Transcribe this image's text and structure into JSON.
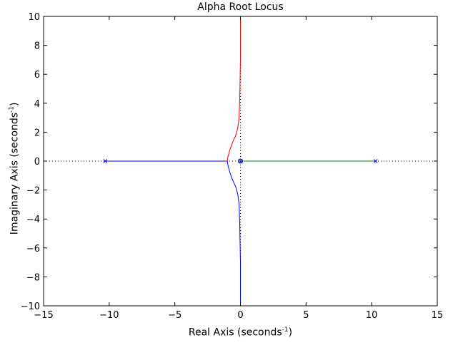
{
  "chart_data": {
    "type": "line",
    "title": "Alpha Root Locus",
    "xlabel": "Real Axis (seconds",
    "ylabel": "Imaginary Axis (seconds",
    "label_superscript": "-1",
    "label_suffix": ")",
    "xlim": [
      -15,
      15
    ],
    "ylim": [
      -10,
      10
    ],
    "xticks": [
      -15,
      -10,
      -5,
      0,
      5,
      10,
      15
    ],
    "yticks": [
      -10,
      -8,
      -6,
      -4,
      -2,
      0,
      2,
      4,
      6,
      8,
      10
    ],
    "grid": false,
    "poles": [
      [
        -10.3,
        0
      ],
      [
        10.3,
        0
      ],
      [
        0,
        0
      ]
    ],
    "zeros": [
      [
        0,
        0
      ]
    ],
    "series": [
      {
        "color": "#ff0000",
        "x": [
          -10.3,
          -1.0,
          -0.95,
          -0.8,
          -0.6,
          -0.35,
          -0.2,
          -0.1,
          -0.05,
          0.0,
          0.0
        ],
        "y": [
          0,
          0,
          0.3,
          0.8,
          1.3,
          1.8,
          2.3,
          3.0,
          4.5,
          7.0,
          10.0
        ]
      },
      {
        "color": "#0000ff",
        "x": [
          -10.3,
          -1.0,
          -0.95,
          -0.8,
          -0.6,
          -0.35,
          -0.2,
          -0.1,
          -0.05,
          0.0,
          0.0
        ],
        "y": [
          0,
          0,
          -0.3,
          -0.8,
          -1.3,
          -1.8,
          -2.3,
          -3.0,
          -4.5,
          -7.0,
          -10.0
        ]
      },
      {
        "color": "#008000",
        "x": [
          10.3,
          0.0
        ],
        "y": [
          0,
          0
        ]
      }
    ]
  }
}
